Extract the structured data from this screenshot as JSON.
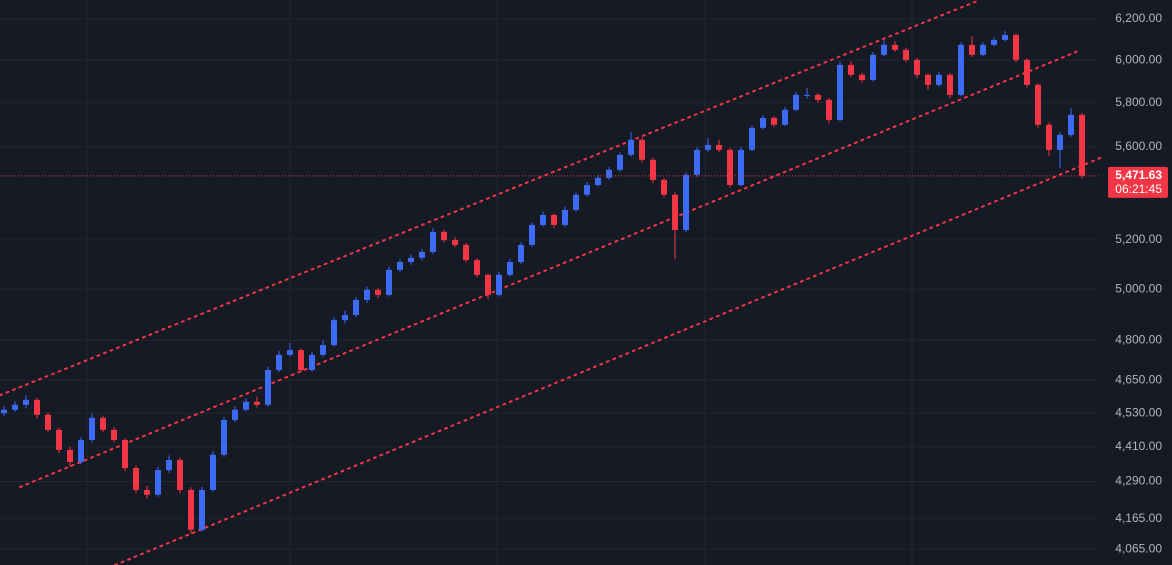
{
  "chart_data": {
    "type": "candlestick",
    "log_scale": true,
    "grid": true,
    "up_color": "#3d6bf5",
    "down_color": "#f23645",
    "ylim": [
      4014,
      6294
    ],
    "yticks": [
      {
        "value": 6200,
        "label": "6,200.00"
      },
      {
        "value": 6000,
        "label": "6,000.00"
      },
      {
        "value": 5800,
        "label": "5,800.00"
      },
      {
        "value": 5600,
        "label": "5,600.00"
      },
      {
        "value": 5200,
        "label": "5,200.00"
      },
      {
        "value": 5000,
        "label": "5,000.00"
      },
      {
        "value": 4800,
        "label": "4,800.00"
      },
      {
        "value": 4650,
        "label": "4,650.00"
      },
      {
        "value": 4530,
        "label": "4,530.00"
      },
      {
        "value": 4410,
        "label": "4,410.00"
      },
      {
        "value": 4290,
        "label": "4,290.00"
      },
      {
        "value": 4165,
        "label": "4,165.00"
      },
      {
        "value": 4065,
        "label": "4,065.00"
      }
    ],
    "last_price": {
      "value": 5471.63,
      "label": "5,471.63"
    },
    "countdown": "06:21:45",
    "trendline_color": "#f23645",
    "trendlines": [
      {
        "points": [
          [
            -0.36,
            4595
          ],
          [
            88.7,
            6294
          ]
        ]
      },
      {
        "points": [
          [
            1.45,
            4271
          ],
          [
            97.5,
            6040
          ]
        ]
      },
      {
        "points": [
          [
            10.1,
            4014
          ],
          [
            99.9,
            5555
          ]
        ]
      }
    ],
    "ohlc": [
      [
        4530,
        4555,
        4520,
        4542
      ],
      [
        4542,
        4572,
        4535,
        4560
      ],
      [
        4560,
        4595,
        4548,
        4578
      ],
      [
        4578,
        4585,
        4510,
        4524
      ],
      [
        4524,
        4532,
        4460,
        4470
      ],
      [
        4470,
        4478,
        4388,
        4399
      ],
      [
        4399,
        4410,
        4340,
        4357
      ],
      [
        4357,
        4445,
        4350,
        4434
      ],
      [
        4434,
        4528,
        4425,
        4513
      ],
      [
        4513,
        4520,
        4462,
        4470
      ],
      [
        4470,
        4480,
        4425,
        4434
      ],
      [
        4434,
        4440,
        4325,
        4336
      ],
      [
        4336,
        4345,
        4250,
        4261
      ],
      [
        4261,
        4275,
        4232,
        4245
      ],
      [
        4245,
        4340,
        4238,
        4329
      ],
      [
        4329,
        4380,
        4320,
        4364
      ],
      [
        4364,
        4372,
        4250,
        4261
      ],
      [
        4261,
        4270,
        4115,
        4128
      ],
      [
        4128,
        4272,
        4122,
        4261
      ],
      [
        4261,
        4395,
        4255,
        4382
      ],
      [
        4382,
        4515,
        4375,
        4505
      ],
      [
        4505,
        4555,
        4498,
        4542
      ],
      [
        4542,
        4585,
        4535,
        4571
      ],
      [
        4571,
        4590,
        4550,
        4560
      ],
      [
        4560,
        4700,
        4552,
        4688
      ],
      [
        4688,
        4760,
        4680,
        4745
      ],
      [
        4745,
        4790,
        4738,
        4763
      ],
      [
        4763,
        4770,
        4680,
        4688
      ],
      [
        4688,
        4758,
        4682,
        4745
      ],
      [
        4745,
        4800,
        4738,
        4782
      ],
      [
        4782,
        4890,
        4775,
        4878
      ],
      [
        4878,
        4915,
        4865,
        4898
      ],
      [
        4898,
        4968,
        4890,
        4957
      ],
      [
        4957,
        5010,
        4945,
        4997
      ],
      [
        4997,
        5005,
        4965,
        4977
      ],
      [
        4977,
        5090,
        4970,
        5077
      ],
      [
        5077,
        5120,
        5068,
        5109
      ],
      [
        5109,
        5140,
        5098,
        5126
      ],
      [
        5126,
        5162,
        5115,
        5150
      ],
      [
        5150,
        5250,
        5142,
        5233
      ],
      [
        5233,
        5242,
        5190,
        5199
      ],
      [
        5199,
        5210,
        5170,
        5179
      ],
      [
        5179,
        5188,
        5108,
        5117
      ],
      [
        5117,
        5125,
        5048,
        5057
      ],
      [
        5057,
        5064,
        4960,
        4977
      ],
      [
        4977,
        5068,
        4970,
        5057
      ],
      [
        5057,
        5120,
        5050,
        5109
      ],
      [
        5109,
        5190,
        5100,
        5179
      ],
      [
        5179,
        5272,
        5170,
        5262
      ],
      [
        5262,
        5318,
        5255,
        5304
      ],
      [
        5304,
        5310,
        5250,
        5262
      ],
      [
        5262,
        5338,
        5255,
        5325
      ],
      [
        5325,
        5400,
        5318,
        5390
      ],
      [
        5390,
        5445,
        5382,
        5432
      ],
      [
        5432,
        5475,
        5425,
        5463
      ],
      [
        5463,
        5510,
        5455,
        5498
      ],
      [
        5498,
        5575,
        5490,
        5564
      ],
      [
        5564,
        5665,
        5555,
        5631
      ],
      [
        5631,
        5640,
        5530,
        5542
      ],
      [
        5542,
        5552,
        5440,
        5454
      ],
      [
        5454,
        5462,
        5378,
        5390
      ],
      [
        5390,
        5400,
        5120,
        5241
      ],
      [
        5241,
        5488,
        5232,
        5476
      ],
      [
        5476,
        5598,
        5468,
        5586
      ],
      [
        5586,
        5640,
        5578,
        5608
      ],
      [
        5608,
        5632,
        5575,
        5586
      ],
      [
        5586,
        5595,
        5420,
        5432
      ],
      [
        5432,
        5598,
        5425,
        5586
      ],
      [
        5586,
        5695,
        5580,
        5685
      ],
      [
        5685,
        5742,
        5678,
        5730
      ],
      [
        5730,
        5738,
        5690,
        5699
      ],
      [
        5699,
        5780,
        5692,
        5767
      ],
      [
        5767,
        5850,
        5760,
        5836
      ],
      [
        5836,
        5868,
        5820,
        5836
      ],
      [
        5836,
        5845,
        5800,
        5813
      ],
      [
        5813,
        5822,
        5705,
        5721
      ],
      [
        5721,
        5992,
        5715,
        5977
      ],
      [
        5977,
        5995,
        5920,
        5930
      ],
      [
        5930,
        5940,
        5892,
        5906
      ],
      [
        5906,
        6038,
        5898,
        6025
      ],
      [
        6025,
        6095,
        6018,
        6073
      ],
      [
        6073,
        6090,
        6040,
        6049
      ],
      [
        6049,
        6060,
        5990,
        6001
      ],
      [
        6001,
        6010,
        5915,
        5930
      ],
      [
        5930,
        5940,
        5860,
        5883
      ],
      [
        5883,
        5945,
        5875,
        5930
      ],
      [
        5930,
        5938,
        5820,
        5836
      ],
      [
        5836,
        6085,
        5830,
        6073
      ],
      [
        6073,
        6115,
        6015,
        6025
      ],
      [
        6025,
        6085,
        6018,
        6073
      ],
      [
        6073,
        6110,
        6065,
        6097
      ],
      [
        6097,
        6140,
        6090,
        6121
      ],
      [
        6121,
        6130,
        5990,
        6001
      ],
      [
        6001,
        6010,
        5870,
        5883
      ],
      [
        5883,
        5890,
        5685,
        5699
      ],
      [
        5699,
        5710,
        5560,
        5586
      ],
      [
        5586,
        5668,
        5505,
        5653
      ],
      [
        5653,
        5775,
        5645,
        5744
      ],
      [
        5744,
        5752,
        5462,
        5471.63
      ]
    ]
  }
}
